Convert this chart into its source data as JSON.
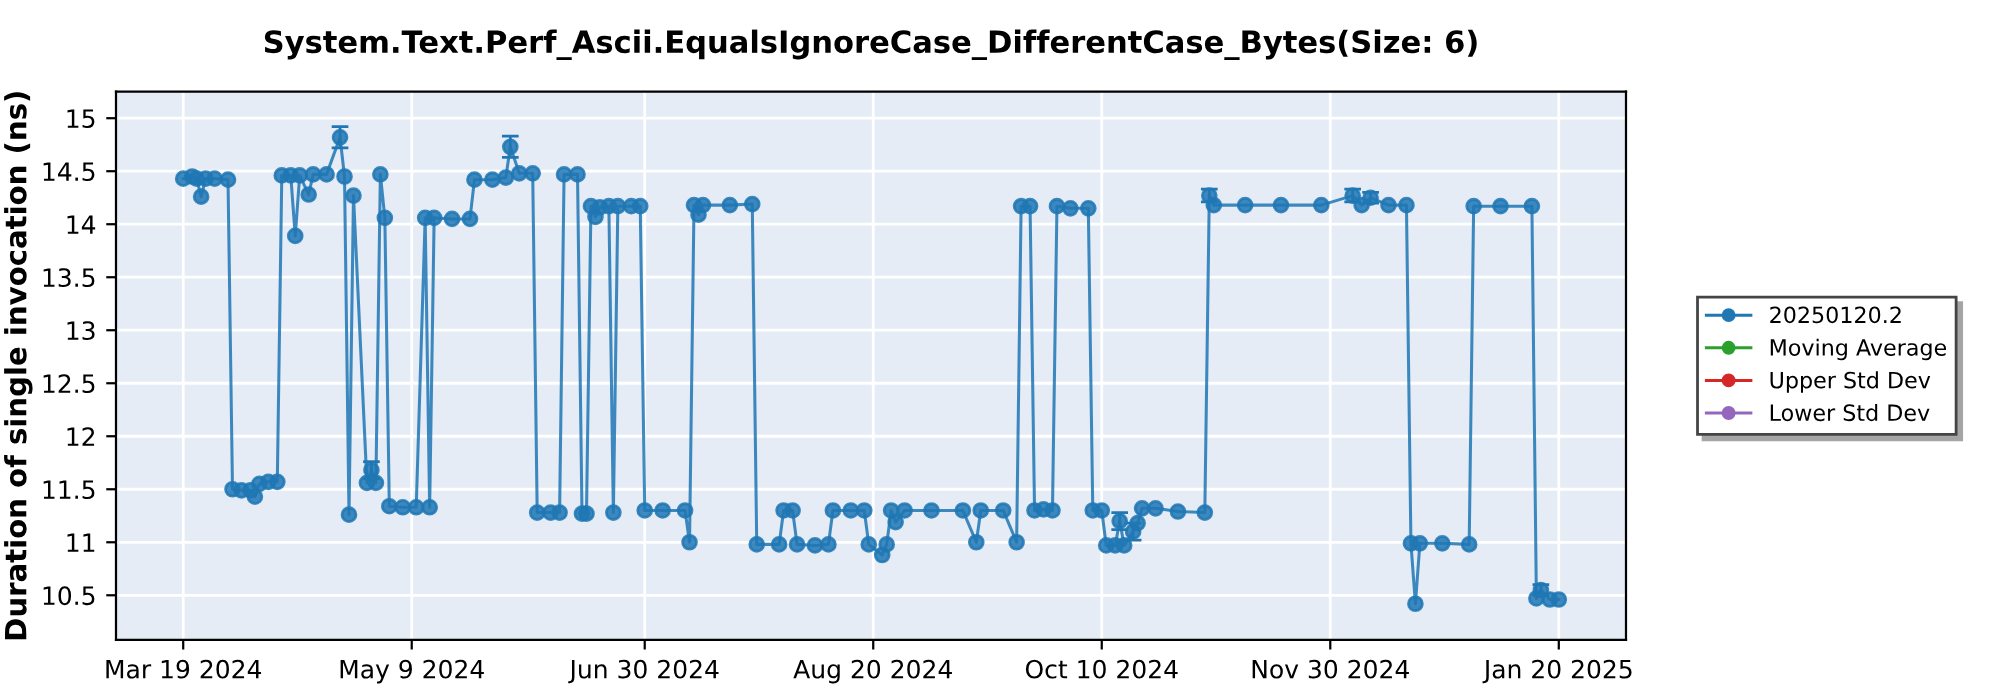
{
  "chart_data": {
    "type": "line",
    "title": "System.Text.Perf_Ascii.EqualsIgnoreCase_DifferentCase_Bytes(Size: 6)",
    "ylabel": "Duration of single invocation (ns)",
    "x": [
      "2024-03-19",
      "2024-03-21",
      "2024-03-22",
      "2024-03-23",
      "2024-03-24",
      "2024-03-26",
      "2024-03-29",
      "2024-03-30",
      "2024-04-01",
      "2024-04-03",
      "2024-04-04",
      "2024-04-05",
      "2024-04-07",
      "2024-04-09",
      "2024-04-10",
      "2024-04-12",
      "2024-04-13",
      "2024-04-14",
      "2024-04-16",
      "2024-04-17",
      "2024-04-20",
      "2024-04-23",
      "2024-04-24",
      "2024-04-25",
      "2024-04-26",
      "2024-04-29",
      "2024-04-30",
      "2024-05-01",
      "2024-05-02",
      "2024-05-03",
      "2024-05-04",
      "2024-05-07",
      "2024-05-10",
      "2024-05-12",
      "2024-05-13",
      "2024-05-14",
      "2024-05-18",
      "2024-05-22",
      "2024-05-23",
      "2024-05-27",
      "2024-05-30",
      "2024-05-31",
      "2024-06-02",
      "2024-06-05",
      "2024-06-06",
      "2024-06-09",
      "2024-06-11",
      "2024-06-12",
      "2024-06-15",
      "2024-06-16",
      "2024-06-17",
      "2024-06-18",
      "2024-06-19",
      "2024-06-20",
      "2024-06-22",
      "2024-06-23",
      "2024-06-24",
      "2024-06-27",
      "2024-06-29",
      "2024-06-30",
      "2024-07-04",
      "2024-07-09",
      "2024-07-10",
      "2024-07-11",
      "2024-07-12",
      "2024-07-13",
      "2024-07-19",
      "2024-07-24",
      "2024-07-25",
      "2024-07-30",
      "2024-07-31",
      "2024-08-02",
      "2024-08-03",
      "2024-08-07",
      "2024-08-10",
      "2024-08-11",
      "2024-08-15",
      "2024-08-18",
      "2024-08-19",
      "2024-08-22",
      "2024-08-23",
      "2024-08-24",
      "2024-08-25",
      "2024-08-27",
      "2024-09-02",
      "2024-09-09",
      "2024-09-12",
      "2024-09-13",
      "2024-09-18",
      "2024-09-21",
      "2024-09-22",
      "2024-09-24",
      "2024-09-25",
      "2024-09-27",
      "2024-09-29",
      "2024-09-30",
      "2024-10-03",
      "2024-10-07",
      "2024-10-08",
      "2024-10-10",
      "2024-10-11",
      "2024-10-13",
      "2024-10-14",
      "2024-10-15",
      "2024-10-17",
      "2024-10-18",
      "2024-10-19",
      "2024-10-22",
      "2024-10-27",
      "2024-11-02",
      "2024-11-03",
      "2024-11-04",
      "2024-11-11",
      "2024-11-19",
      "2024-11-28",
      "2024-12-05",
      "2024-12-07",
      "2024-12-09",
      "2024-12-13",
      "2024-12-17",
      "2024-12-18",
      "2024-12-19",
      "2024-12-20",
      "2024-12-25",
      "2024-12-31",
      "2025-01-01",
      "2025-01-07",
      "2025-01-14",
      "2025-01-15",
      "2025-01-16",
      "2025-01-18",
      "2025-01-20"
    ],
    "series": [
      {
        "name": "20250120.2",
        "color": "#1f77b4",
        "values": [
          14.43,
          14.45,
          14.43,
          14.26,
          14.43,
          14.43,
          14.42,
          11.5,
          11.49,
          11.49,
          11.43,
          11.55,
          11.57,
          11.57,
          14.46,
          14.46,
          13.89,
          14.46,
          14.28,
          14.47,
          14.47,
          14.82,
          14.45,
          11.26,
          14.27,
          11.56,
          11.68,
          11.56,
          14.47,
          14.06,
          11.34,
          11.33,
          11.33,
          14.06,
          11.33,
          14.06,
          14.05,
          14.05,
          14.42,
          14.42,
          14.44,
          14.73,
          14.48,
          14.48,
          11.28,
          11.28,
          11.28,
          14.47,
          14.47,
          11.27,
          11.27,
          14.17,
          14.07,
          14.16,
          14.17,
          11.28,
          14.17,
          14.17,
          14.17,
          11.3,
          11.3,
          11.3,
          11.0,
          14.18,
          14.09,
          14.18,
          14.18,
          14.19,
          10.98,
          10.98,
          11.3,
          11.3,
          10.98,
          10.97,
          10.98,
          11.3,
          11.3,
          11.3,
          10.98,
          10.88,
          10.98,
          11.3,
          11.19,
          11.3,
          11.3,
          11.3,
          11.0,
          11.3,
          11.3,
          11.0,
          14.17,
          14.17,
          11.3,
          11.31,
          11.3,
          14.17,
          14.15,
          14.15,
          11.3,
          11.3,
          10.97,
          10.97,
          11.2,
          10.97,
          11.1,
          11.18,
          11.32,
          11.32,
          11.29,
          11.28,
          14.27,
          14.18,
          14.18,
          14.18,
          14.18,
          14.27,
          14.18,
          14.25,
          14.18,
          14.18,
          10.99,
          10.42,
          10.99,
          10.99,
          10.98,
          14.17,
          14.17,
          14.17,
          10.47,
          10.55,
          10.46,
          10.46
        ],
        "errors": [
          null,
          null,
          null,
          null,
          null,
          null,
          null,
          null,
          null,
          null,
          null,
          null,
          null,
          null,
          null,
          null,
          null,
          null,
          null,
          null,
          null,
          0.1,
          null,
          null,
          null,
          null,
          0.08,
          null,
          null,
          null,
          null,
          null,
          null,
          null,
          null,
          null,
          null,
          null,
          null,
          null,
          null,
          0.1,
          null,
          null,
          null,
          null,
          null,
          null,
          null,
          null,
          null,
          null,
          null,
          null,
          null,
          null,
          null,
          null,
          null,
          null,
          null,
          null,
          null,
          null,
          null,
          null,
          null,
          null,
          null,
          null,
          null,
          null,
          null,
          null,
          null,
          null,
          null,
          null,
          null,
          null,
          null,
          null,
          null,
          null,
          null,
          null,
          null,
          null,
          null,
          null,
          null,
          null,
          null,
          null,
          null,
          null,
          null,
          null,
          null,
          null,
          null,
          null,
          0.08,
          null,
          0.08,
          null,
          null,
          null,
          null,
          null,
          0.06,
          null,
          null,
          null,
          null,
          0.06,
          null,
          0.05,
          null,
          null,
          null,
          null,
          null,
          null,
          null,
          null,
          null,
          null,
          null,
          0.05,
          null,
          null
        ]
      },
      {
        "name": "Moving Average",
        "color": "#2ca02c",
        "values": [
          null,
          null,
          null,
          null,
          null,
          null,
          null,
          null,
          null,
          null,
          null,
          null,
          null,
          null,
          null,
          null,
          null,
          null,
          null,
          null,
          null,
          null,
          null,
          null,
          null,
          null,
          null,
          null,
          null,
          null,
          null,
          null,
          null,
          null,
          null,
          null,
          null,
          null,
          null,
          null,
          null,
          null,
          null,
          null,
          null,
          null,
          null,
          null,
          null,
          null,
          null,
          null,
          null,
          null,
          null,
          null,
          null,
          null,
          null,
          null,
          null,
          null,
          null,
          null,
          null,
          null,
          null,
          null,
          null,
          null,
          null,
          null,
          null,
          null,
          null,
          null,
          null,
          null,
          null,
          null,
          null,
          null,
          null,
          null,
          null,
          null,
          null,
          null,
          null,
          null,
          null,
          null,
          null,
          null,
          null,
          null,
          null,
          null,
          null,
          null,
          null,
          null,
          null,
          null,
          null,
          null,
          null,
          null,
          null,
          null,
          null,
          null,
          null,
          null,
          null,
          null,
          null,
          null,
          null,
          null,
          null,
          null,
          null,
          null,
          null,
          null,
          null,
          null,
          null,
          null,
          null,
          null
        ]
      },
      {
        "name": "Upper Std Dev",
        "color": "#d62728",
        "values": [
          null,
          null,
          null,
          null,
          null,
          null,
          null,
          null,
          null,
          null,
          null,
          null,
          null,
          null,
          null,
          null,
          null,
          null,
          null,
          null,
          null,
          null,
          null,
          null,
          null,
          null,
          null,
          null,
          null,
          null,
          null,
          null,
          null,
          null,
          null,
          null,
          null,
          null,
          null,
          null,
          null,
          null,
          null,
          null,
          null,
          null,
          null,
          null,
          null,
          null,
          null,
          null,
          null,
          null,
          null,
          null,
          null,
          null,
          null,
          null,
          null,
          null,
          null,
          null,
          null,
          null,
          null,
          null,
          null,
          null,
          null,
          null,
          null,
          null,
          null,
          null,
          null,
          null,
          null,
          null,
          null,
          null,
          null,
          null,
          null,
          null,
          null,
          null,
          null,
          null,
          null,
          null,
          null,
          null,
          null,
          null,
          null,
          null,
          null,
          null,
          null,
          null,
          null,
          null,
          null,
          null,
          null,
          null,
          null,
          null,
          null,
          null,
          null,
          null,
          null,
          null,
          null,
          null,
          null,
          null,
          null,
          null,
          null,
          null,
          null,
          null,
          null,
          null,
          null,
          null,
          null,
          null
        ]
      },
      {
        "name": "Lower Std Dev",
        "color": "#9467bd",
        "values": [
          null,
          null,
          null,
          null,
          null,
          null,
          null,
          null,
          null,
          null,
          null,
          null,
          null,
          null,
          null,
          null,
          null,
          null,
          null,
          null,
          null,
          null,
          null,
          null,
          null,
          null,
          null,
          null,
          null,
          null,
          null,
          null,
          null,
          null,
          null,
          null,
          null,
          null,
          null,
          null,
          null,
          null,
          null,
          null,
          null,
          null,
          null,
          null,
          null,
          null,
          null,
          null,
          null,
          null,
          null,
          null,
          null,
          null,
          null,
          null,
          null,
          null,
          null,
          null,
          null,
          null,
          null,
          null,
          null,
          null,
          null,
          null,
          null,
          null,
          null,
          null,
          null,
          null,
          null,
          null,
          null,
          null,
          null,
          null,
          null,
          null,
          null,
          null,
          null,
          null,
          null,
          null,
          null,
          null,
          null,
          null,
          null,
          null,
          null,
          null,
          null,
          null,
          null,
          null,
          null,
          null,
          null,
          null,
          null,
          null,
          null,
          null,
          null,
          null,
          null,
          null,
          null,
          null,
          null,
          null,
          null,
          null,
          null,
          null,
          null,
          null,
          null,
          null,
          null,
          null,
          null,
          null
        ]
      }
    ],
    "xlim": [
      "2024-03-04",
      "2025-02-04"
    ],
    "xticks": [
      {
        "value": "2024-03-19",
        "label": "Mar 19 2024"
      },
      {
        "value": "2024-05-09",
        "label": "May 9 2024"
      },
      {
        "value": "2024-06-30",
        "label": "Jun 30 2024"
      },
      {
        "value": "2024-08-20",
        "label": "Aug 20 2024"
      },
      {
        "value": "2024-10-10",
        "label": "Oct 10 2024"
      },
      {
        "value": "2024-11-30",
        "label": "Nov 30 2024"
      },
      {
        "value": "2025-01-20",
        "label": "Jan 20 2025"
      }
    ],
    "ylim": [
      10.08,
      15.25
    ],
    "yticks": [
      10.5,
      11,
      11.5,
      12,
      12.5,
      13,
      13.5,
      14,
      14.5,
      15
    ],
    "grid": true,
    "legend": "right",
    "marker": "circle",
    "line_style": "solid"
  }
}
